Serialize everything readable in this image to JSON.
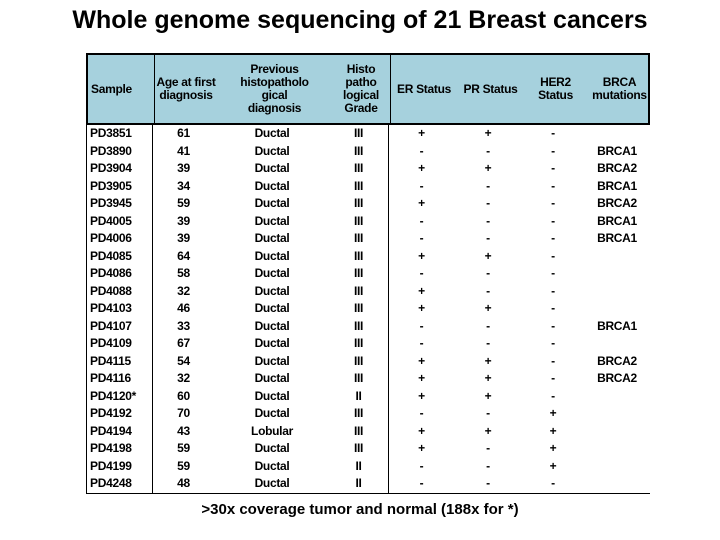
{
  "title": "Whole genome sequencing of 21 Breast cancers",
  "footer": ">30x coverage tumor and normal (188x for *)",
  "colors": {
    "header_bg": "#A6D1DD",
    "border": "#000000",
    "text": "#000000"
  },
  "table": {
    "columns": [
      {
        "key": "sample",
        "label": "Sample"
      },
      {
        "key": "age",
        "label": "Age at first\ndiagnosis"
      },
      {
        "key": "prev",
        "label": "Previous\nhistopatholo\ngical\ndiagnosis"
      },
      {
        "key": "grade",
        "label": "Histo patho\nlogical\nGrade"
      },
      {
        "key": "er",
        "label": "ER Status"
      },
      {
        "key": "pr",
        "label": "PR Status"
      },
      {
        "key": "her2",
        "label": "HER2\nStatus"
      },
      {
        "key": "brca",
        "label": "BRCA\nmutations"
      }
    ],
    "rows": [
      [
        "PD3851",
        "61",
        "Ductal",
        "III",
        "+",
        "+",
        "-",
        ""
      ],
      [
        "PD3890",
        "41",
        "Ductal",
        "III",
        "-",
        "-",
        "-",
        "BRCA1"
      ],
      [
        "PD3904",
        "39",
        "Ductal",
        "III",
        "+",
        "+",
        "-",
        "BRCA2"
      ],
      [
        "PD3905",
        "34",
        "Ductal",
        "III",
        "-",
        "-",
        "-",
        "BRCA1"
      ],
      [
        "PD3945",
        "59",
        "Ductal",
        "III",
        "+",
        "-",
        "-",
        "BRCA2"
      ],
      [
        "PD4005",
        "39",
        "Ductal",
        "III",
        "-",
        "-",
        "-",
        "BRCA1"
      ],
      [
        "PD4006",
        "39",
        "Ductal",
        "III",
        "-",
        "-",
        "-",
        "BRCA1"
      ],
      [
        "PD4085",
        "64",
        "Ductal",
        "III",
        "+",
        "+",
        "-",
        ""
      ],
      [
        "PD4086",
        "58",
        "Ductal",
        "III",
        "-",
        "-",
        "-",
        ""
      ],
      [
        "PD4088",
        "32",
        "Ductal",
        "III",
        "+",
        "-",
        "-",
        ""
      ],
      [
        "PD4103",
        "46",
        "Ductal",
        "III",
        "+",
        "+",
        "-",
        ""
      ],
      [
        "PD4107",
        "33",
        "Ductal",
        "III",
        "-",
        "-",
        "-",
        "BRCA1"
      ],
      [
        "PD4109",
        "67",
        "Ductal",
        "III",
        "-",
        "-",
        "-",
        ""
      ],
      [
        "PD4115",
        "54",
        "Ductal",
        "III",
        "+",
        "+",
        "-",
        "BRCA2"
      ],
      [
        "PD4116",
        "32",
        "Ductal",
        "III",
        "+",
        "+",
        "-",
        "BRCA2"
      ],
      [
        "PD4120*",
        "60",
        "Ductal",
        "II",
        "+",
        "+",
        "-",
        ""
      ],
      [
        "PD4192",
        "70",
        "Ductal",
        "III",
        "-",
        "-",
        "+",
        ""
      ],
      [
        "PD4194",
        "43",
        "Lobular",
        "III",
        "+",
        "+",
        "+",
        ""
      ],
      [
        "PD4198",
        "59",
        "Ductal",
        "III",
        "+",
        "-",
        "+",
        ""
      ],
      [
        "PD4199",
        "59",
        "Ductal",
        "II",
        "-",
        "-",
        "+",
        ""
      ],
      [
        "PD4248",
        "48",
        "Ductal",
        "II",
        "-",
        "-",
        "-",
        ""
      ]
    ]
  }
}
